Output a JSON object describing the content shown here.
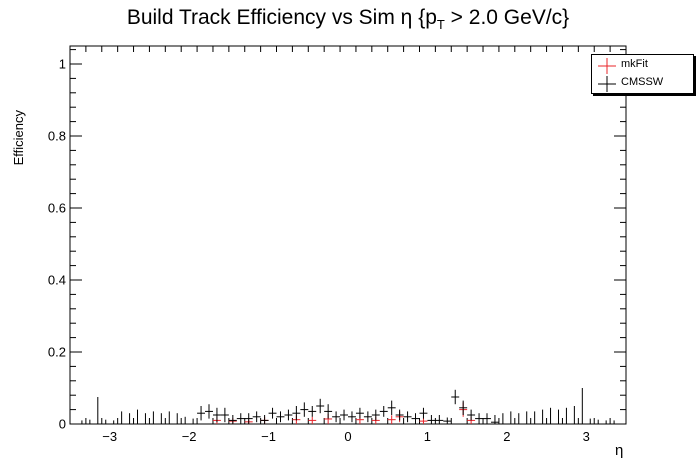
{
  "chart_data": {
    "type": "scatter",
    "title": "Build Track Efficiency vs Sim η {p",
    "title_sub": "T",
    "title_suffix": " > 2.0 GeV/c}",
    "xlabel": "η",
    "ylabel": "Efficiency",
    "xlim": [
      -3.5,
      3.5
    ],
    "ylim": [
      0,
      1.05
    ],
    "x_ticks": [
      "−3",
      "−2",
      "−1",
      "0",
      "1",
      "2",
      "3"
    ],
    "x_tick_values": [
      -3,
      -2,
      -1,
      0,
      1,
      2,
      3
    ],
    "y_ticks": [
      "0",
      "0.2",
      "0.4",
      "0.6",
      "0.8",
      "1"
    ],
    "y_tick_values": [
      0,
      0.2,
      0.4,
      0.6,
      0.8,
      1.0
    ],
    "legend_position": "top-right",
    "series": [
      {
        "name": "mkFit",
        "color": "#e8242a",
        "x": [
          -1.65,
          -1.45,
          -1.25,
          -1.05,
          -0.65,
          -0.45,
          -0.25,
          0.15,
          0.35,
          0.55,
          0.65,
          0.95,
          1.45,
          1.55
        ],
        "y": [
          0.01,
          0.008,
          0.006,
          0.01,
          0.012,
          0.01,
          0.014,
          0.012,
          0.01,
          0.012,
          0.02,
          0.008,
          0.04,
          0.01
        ],
        "err": [
          0.01,
          0.008,
          0.006,
          0.01,
          0.012,
          0.01,
          0.014,
          0.012,
          0.01,
          0.012,
          0.015,
          0.008,
          0.02,
          0.01
        ]
      },
      {
        "name": "CMSSW",
        "color": "#000000",
        "x": [
          -3.35,
          -3.25,
          -3.15,
          -3.05,
          -2.95,
          -2.85,
          -2.75,
          -2.65,
          -2.55,
          -2.45,
          -2.35,
          -2.25,
          -2.15,
          -2.05,
          -1.95,
          -1.85,
          -1.75,
          -1.65,
          -1.55,
          -1.45,
          -1.35,
          -1.25,
          -1.15,
          -1.05,
          -0.95,
          -0.85,
          -0.75,
          -0.65,
          -0.55,
          -0.45,
          -0.35,
          -0.25,
          -0.15,
          -0.05,
          0.05,
          0.15,
          0.25,
          0.35,
          0.45,
          0.55,
          0.65,
          0.75,
          0.85,
          0.95,
          1.05,
          1.15,
          1.25,
          1.35,
          1.45,
          1.55,
          1.65,
          1.75,
          1.85,
          1.95,
          2.05,
          2.15,
          2.25,
          2.35,
          2.45,
          2.55,
          2.65,
          2.75,
          2.85,
          2.95,
          3.05,
          3.15,
          3.25,
          3.35
        ],
        "y": [
          0,
          0,
          0,
          0,
          0,
          0,
          0,
          0,
          0,
          0,
          0,
          0,
          0,
          0,
          0,
          0.03,
          0.035,
          0.025,
          0.025,
          0.01,
          0.015,
          0.015,
          0.02,
          0.01,
          0.03,
          0.02,
          0.025,
          0.03,
          0.04,
          0.035,
          0.05,
          0.035,
          0.02,
          0.025,
          0.02,
          0.03,
          0.02,
          0.025,
          0.035,
          0.045,
          0.025,
          0.02,
          0.015,
          0.03,
          0.01,
          0.01,
          0.008,
          0.075,
          0.045,
          0.025,
          0.015,
          0.015,
          0.005,
          0,
          0,
          0,
          0,
          0,
          0,
          0,
          0,
          0,
          0,
          0,
          0,
          0,
          0,
          0
        ],
        "err": [
          0.01,
          0.012,
          0.075,
          0.012,
          0.01,
          0.035,
          0.03,
          0.04,
          0.03,
          0.035,
          0.03,
          0.035,
          0.03,
          0.02,
          0.015,
          0.02,
          0.02,
          0.02,
          0.02,
          0.015,
          0.015,
          0.015,
          0.015,
          0.015,
          0.015,
          0.015,
          0.015,
          0.02,
          0.02,
          0.015,
          0.02,
          0.02,
          0.015,
          0.015,
          0.015,
          0.015,
          0.015,
          0.015,
          0.015,
          0.02,
          0.015,
          0.015,
          0.015,
          0.015,
          0.015,
          0.015,
          0.01,
          0.02,
          0.02,
          0.015,
          0.015,
          0.015,
          0.02,
          0.03,
          0.035,
          0.03,
          0.035,
          0.035,
          0.04,
          0.045,
          0.04,
          0.045,
          0.05,
          0.1,
          0.015,
          0.012,
          0.01,
          0.01
        ]
      }
    ]
  }
}
